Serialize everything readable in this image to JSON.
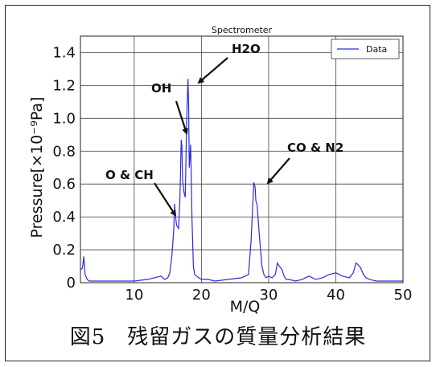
{
  "caption": "図5　残留ガスの質量分析結果",
  "chart_data": {
    "type": "line",
    "title": "Spectrometer",
    "xlabel": "M/Q",
    "ylabel": "Pressure[×10⁻⁹Pa]",
    "xlim": [
      2,
      50
    ],
    "ylim": [
      0,
      1.5
    ],
    "xticks": [
      10,
      20,
      30,
      40,
      50
    ],
    "yticks": [
      0,
      0.2,
      0.4,
      0.6,
      0.8,
      1.0,
      1.2,
      1.4
    ],
    "ytick_labels": [
      "0",
      "0.2",
      "0.4",
      "0.6",
      "0.8",
      "1.0",
      "1.2",
      "1.4"
    ],
    "grid": true,
    "legend": {
      "position": "top-right",
      "entries": [
        "Data"
      ]
    },
    "series": [
      {
        "name": "Data",
        "color": "#2a2ae6",
        "x": [
          2.1,
          2.3,
          2.5,
          2.7,
          3.0,
          3.3,
          4,
          6,
          8,
          10,
          12,
          13,
          14,
          14.5,
          15,
          15.3,
          15.6,
          15.9,
          16.0,
          16.1,
          16.3,
          16.6,
          16.8,
          17.0,
          17.1,
          17.2,
          17.4,
          17.6,
          17.8,
          18.0,
          18.1,
          18.2,
          18.4,
          18.6,
          18.8,
          19.0,
          19.3,
          19.6,
          20,
          21,
          22,
          24,
          26,
          27,
          27.4,
          27.8,
          28.0,
          28.1,
          28.3,
          28.6,
          29,
          29.3,
          29.6,
          30,
          30.5,
          31,
          31.3,
          31.6,
          32.0,
          32.3,
          32.6,
          33,
          34,
          35,
          36,
          37,
          38,
          39,
          40,
          41,
          42,
          42.6,
          43.0,
          43.3,
          43.7,
          44.1,
          44.5,
          45,
          46,
          47,
          48,
          49,
          50
        ],
        "y": [
          0.08,
          0.09,
          0.16,
          0.05,
          0.02,
          0.01,
          0.01,
          0.01,
          0.01,
          0.01,
          0.02,
          0.03,
          0.04,
          0.02,
          0.03,
          0.06,
          0.16,
          0.33,
          0.48,
          0.42,
          0.35,
          0.33,
          0.5,
          0.87,
          0.83,
          0.62,
          0.55,
          0.52,
          0.98,
          1.24,
          1.08,
          0.7,
          0.84,
          0.38,
          0.1,
          0.05,
          0.04,
          0.03,
          0.02,
          0.02,
          0.01,
          0.02,
          0.03,
          0.05,
          0.26,
          0.61,
          0.58,
          0.5,
          0.47,
          0.3,
          0.1,
          0.05,
          0.03,
          0.04,
          0.03,
          0.05,
          0.12,
          0.1,
          0.08,
          0.04,
          0.02,
          0.02,
          0.01,
          0.02,
          0.04,
          0.02,
          0.03,
          0.05,
          0.06,
          0.04,
          0.03,
          0.06,
          0.12,
          0.11,
          0.09,
          0.05,
          0.03,
          0.02,
          0.01,
          0.01,
          0.01,
          0.01,
          0.01
        ]
      }
    ],
    "annotations": [
      {
        "text": "H2O",
        "x": 18.0,
        "y": 1.24
      },
      {
        "text": "OH",
        "x": 17.0,
        "y": 0.87
      },
      {
        "text": "O & CH",
        "x": 16.0,
        "y": 0.45
      },
      {
        "text": "CO & N2",
        "x": 28.0,
        "y": 0.61
      }
    ]
  }
}
